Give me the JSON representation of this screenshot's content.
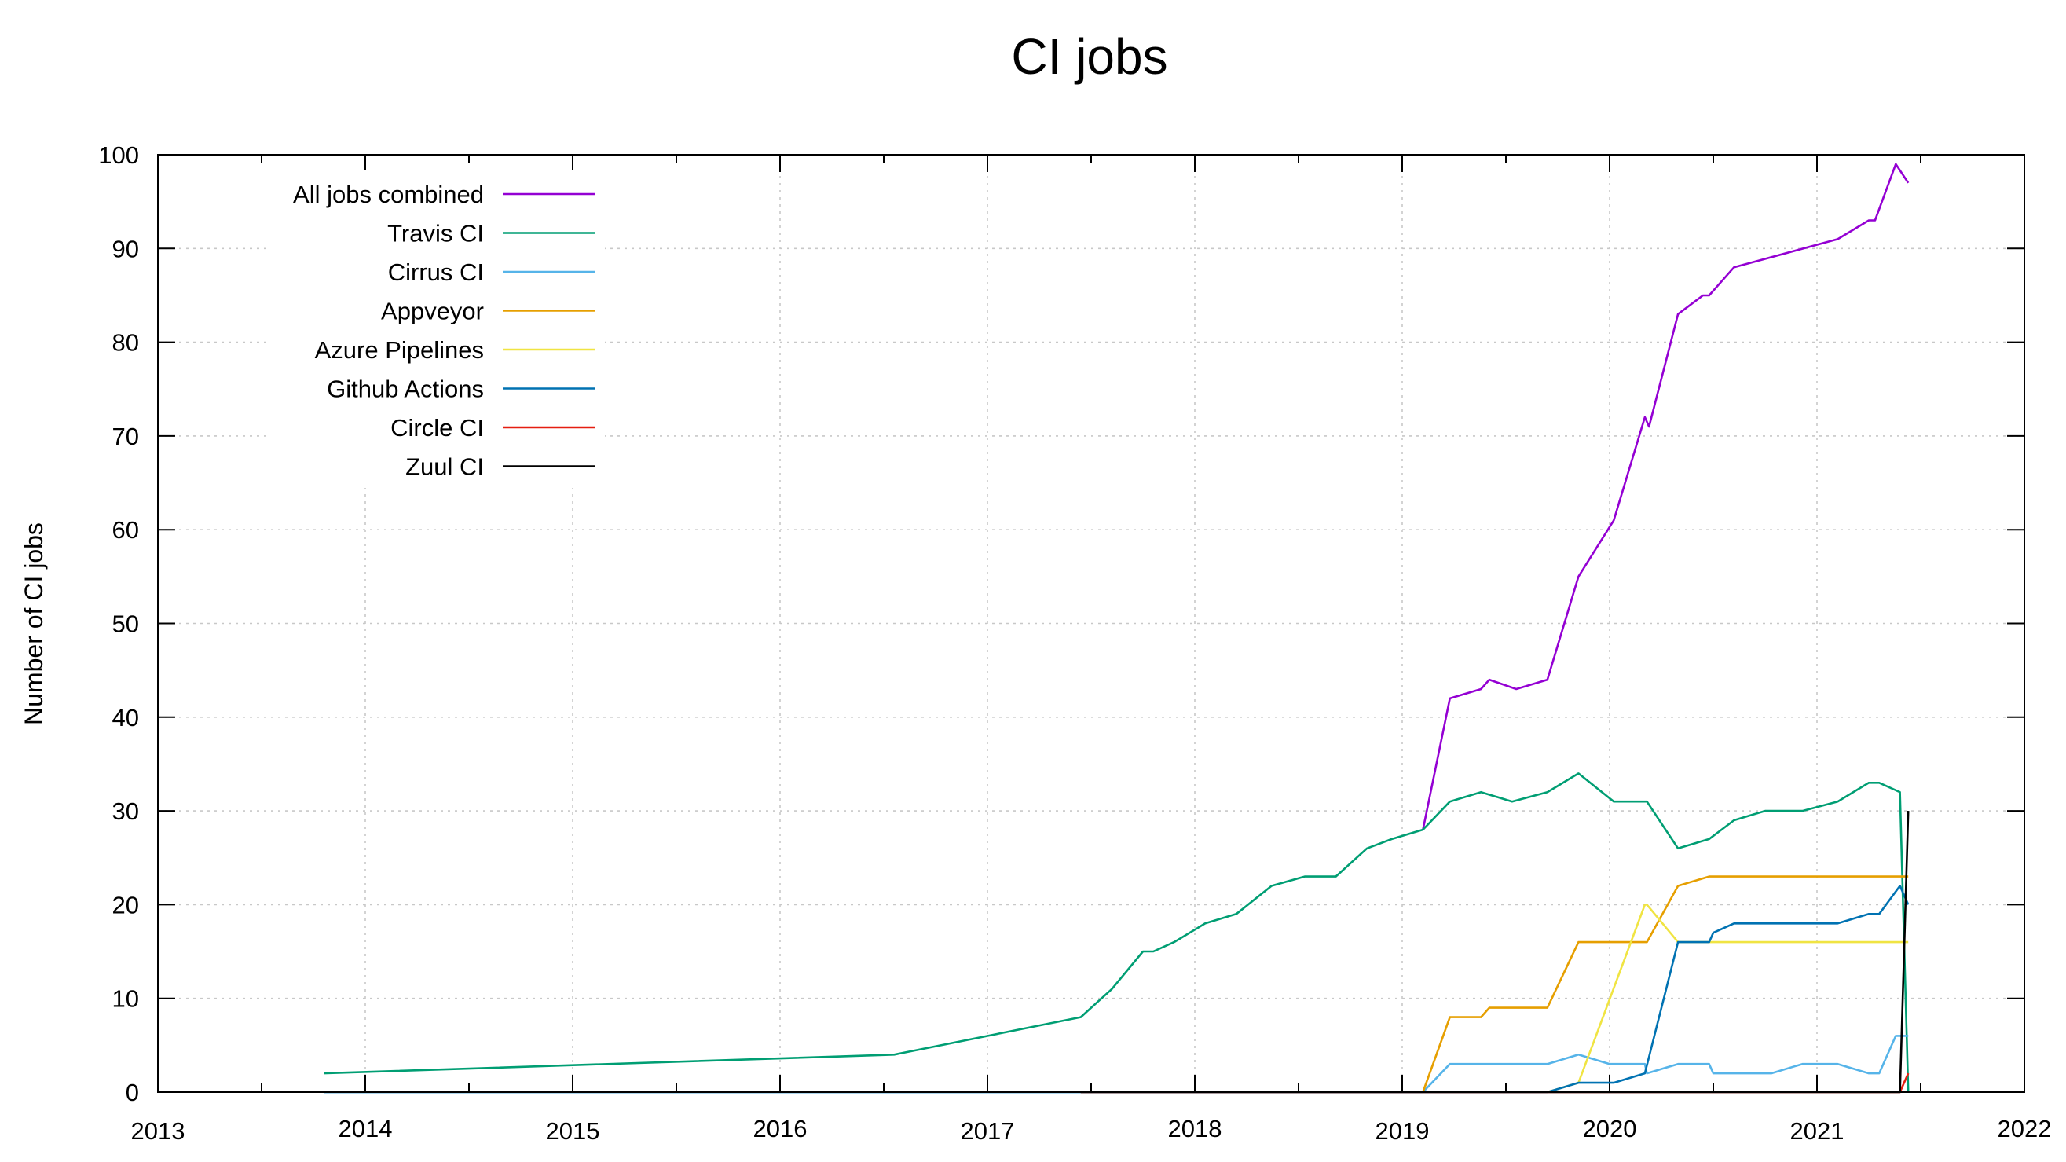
{
  "chart_data": {
    "type": "line",
    "title": "CI jobs",
    "xlabel": "",
    "ylabel": "Number of CI jobs",
    "xlim": [
      2013,
      2022
    ],
    "ylim": [
      0,
      100
    ],
    "x_ticks_major": [
      "2013",
      "2014",
      "2015",
      "2016",
      "2017",
      "2018",
      "2019",
      "2020",
      "2021",
      "2022"
    ],
    "y_ticks": [
      "0",
      "10",
      "20",
      "30",
      "40",
      "50",
      "60",
      "70",
      "80",
      "90",
      "100"
    ],
    "grid": true,
    "grid_style": "dotted",
    "legend_position": "top-left",
    "series": [
      {
        "name": "All jobs combined",
        "color": "#9400d3",
        "points": [
          [
            2019.1,
            28
          ],
          [
            2019.23,
            42
          ],
          [
            2019.38,
            43
          ],
          [
            2019.42,
            44
          ],
          [
            2019.55,
            43
          ],
          [
            2019.7,
            44
          ],
          [
            2019.85,
            55
          ],
          [
            2020.02,
            61
          ],
          [
            2020.17,
            72
          ],
          [
            2020.19,
            71
          ],
          [
            2020.33,
            83
          ],
          [
            2020.45,
            85
          ],
          [
            2020.48,
            85
          ],
          [
            2020.6,
            88
          ],
          [
            2021.1,
            91
          ],
          [
            2021.25,
            93
          ],
          [
            2021.28,
            93
          ],
          [
            2021.38,
            99
          ],
          [
            2021.44,
            97
          ]
        ]
      },
      {
        "name": "Travis CI",
        "color": "#009e73",
        "points": [
          [
            2013.8,
            2
          ],
          [
            2016.55,
            4
          ],
          [
            2017.45,
            8
          ],
          [
            2017.6,
            11
          ],
          [
            2017.75,
            15
          ],
          [
            2017.8,
            15
          ],
          [
            2017.9,
            16
          ],
          [
            2018.05,
            18
          ],
          [
            2018.2,
            19
          ],
          [
            2018.37,
            22
          ],
          [
            2018.53,
            23
          ],
          [
            2018.68,
            23
          ],
          [
            2018.83,
            26
          ],
          [
            2018.95,
            27
          ],
          [
            2019.1,
            28
          ],
          [
            2019.23,
            31
          ],
          [
            2019.38,
            32
          ],
          [
            2019.53,
            31
          ],
          [
            2019.7,
            32
          ],
          [
            2019.85,
            34
          ],
          [
            2020.02,
            31
          ],
          [
            2020.18,
            31
          ],
          [
            2020.33,
            26
          ],
          [
            2020.48,
            27
          ],
          [
            2020.6,
            29
          ],
          [
            2020.75,
            30
          ],
          [
            2020.93,
            30
          ],
          [
            2021.1,
            31
          ],
          [
            2021.25,
            33
          ],
          [
            2021.3,
            33
          ],
          [
            2021.4,
            32
          ],
          [
            2021.44,
            0
          ]
        ]
      },
      {
        "name": "Cirrus CI",
        "color": "#56b4e9",
        "points": [
          [
            2013.8,
            0
          ],
          [
            2019.1,
            0
          ],
          [
            2019.23,
            3
          ],
          [
            2019.7,
            3
          ],
          [
            2019.85,
            4
          ],
          [
            2020.0,
            3
          ],
          [
            2020.17,
            3
          ],
          [
            2020.18,
            2
          ],
          [
            2020.33,
            3
          ],
          [
            2020.48,
            3
          ],
          [
            2020.5,
            2
          ],
          [
            2020.78,
            2
          ],
          [
            2020.93,
            3
          ],
          [
            2021.1,
            3
          ],
          [
            2021.25,
            2
          ],
          [
            2021.3,
            2
          ],
          [
            2021.38,
            6
          ],
          [
            2021.44,
            6
          ]
        ]
      },
      {
        "name": "Appveyor",
        "color": "#e69f00",
        "points": [
          [
            2019.1,
            0
          ],
          [
            2019.23,
            8
          ],
          [
            2019.38,
            8
          ],
          [
            2019.42,
            9
          ],
          [
            2019.7,
            9
          ],
          [
            2019.85,
            16
          ],
          [
            2020.18,
            16
          ],
          [
            2020.33,
            22
          ],
          [
            2020.48,
            23
          ],
          [
            2021.4,
            23
          ],
          [
            2021.44,
            23
          ]
        ]
      },
      {
        "name": "Azure Pipelines",
        "color": "#f0e442",
        "points": [
          [
            2019.7,
            0
          ],
          [
            2019.85,
            1
          ],
          [
            2020.17,
            20
          ],
          [
            2020.18,
            20
          ],
          [
            2020.33,
            16
          ],
          [
            2021.4,
            16
          ],
          [
            2021.44,
            16
          ]
        ]
      },
      {
        "name": "Github Actions",
        "color": "#0072b2",
        "points": [
          [
            2013.8,
            0
          ],
          [
            2019.7,
            0
          ],
          [
            2019.85,
            1
          ],
          [
            2020.02,
            1
          ],
          [
            2020.17,
            2
          ],
          [
            2020.33,
            16
          ],
          [
            2020.48,
            16
          ],
          [
            2020.5,
            17
          ],
          [
            2020.6,
            18
          ],
          [
            2021.1,
            18
          ],
          [
            2021.25,
            19
          ],
          [
            2021.3,
            19
          ],
          [
            2021.4,
            22
          ],
          [
            2021.44,
            20
          ]
        ]
      },
      {
        "name": "Circle CI",
        "color": "#e51e10",
        "points": [
          [
            2017.45,
            0
          ],
          [
            2021.4,
            0
          ],
          [
            2021.44,
            2
          ]
        ]
      },
      {
        "name": "Zuul CI",
        "color": "#000000",
        "points": [
          [
            2017.45,
            0
          ],
          [
            2021.4,
            0
          ],
          [
            2021.44,
            30
          ]
        ]
      }
    ]
  }
}
